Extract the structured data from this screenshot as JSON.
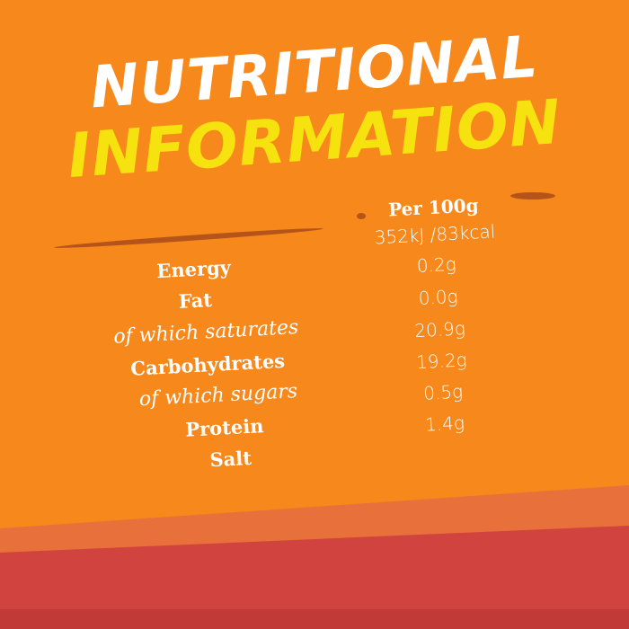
{
  "title": {
    "line1": "NUTRITIONAL",
    "line2": "INFORMATION"
  },
  "table": {
    "header": "Per 100g",
    "rows": [
      {
        "label": "Energy",
        "value": "352kJ /83kcal",
        "style": "bold"
      },
      {
        "label": "Fat",
        "value": "0.2g",
        "style": "bold"
      },
      {
        "label": "of which saturates",
        "value": "0.0g",
        "style": "italic"
      },
      {
        "label": "Carbohydrates",
        "value": "20.9g",
        "style": "bold"
      },
      {
        "label": "of which sugars",
        "value": "19.2g",
        "style": "italic"
      },
      {
        "label": "Protein",
        "value": "0.5g",
        "style": "bold"
      },
      {
        "label": "Salt",
        "value": "1.4g",
        "style": "bold"
      }
    ]
  },
  "colors": {
    "background": "#f7881b",
    "title_primary": "#ffffff",
    "title_accent": "#f6e20e",
    "band": "#d0433e"
  }
}
